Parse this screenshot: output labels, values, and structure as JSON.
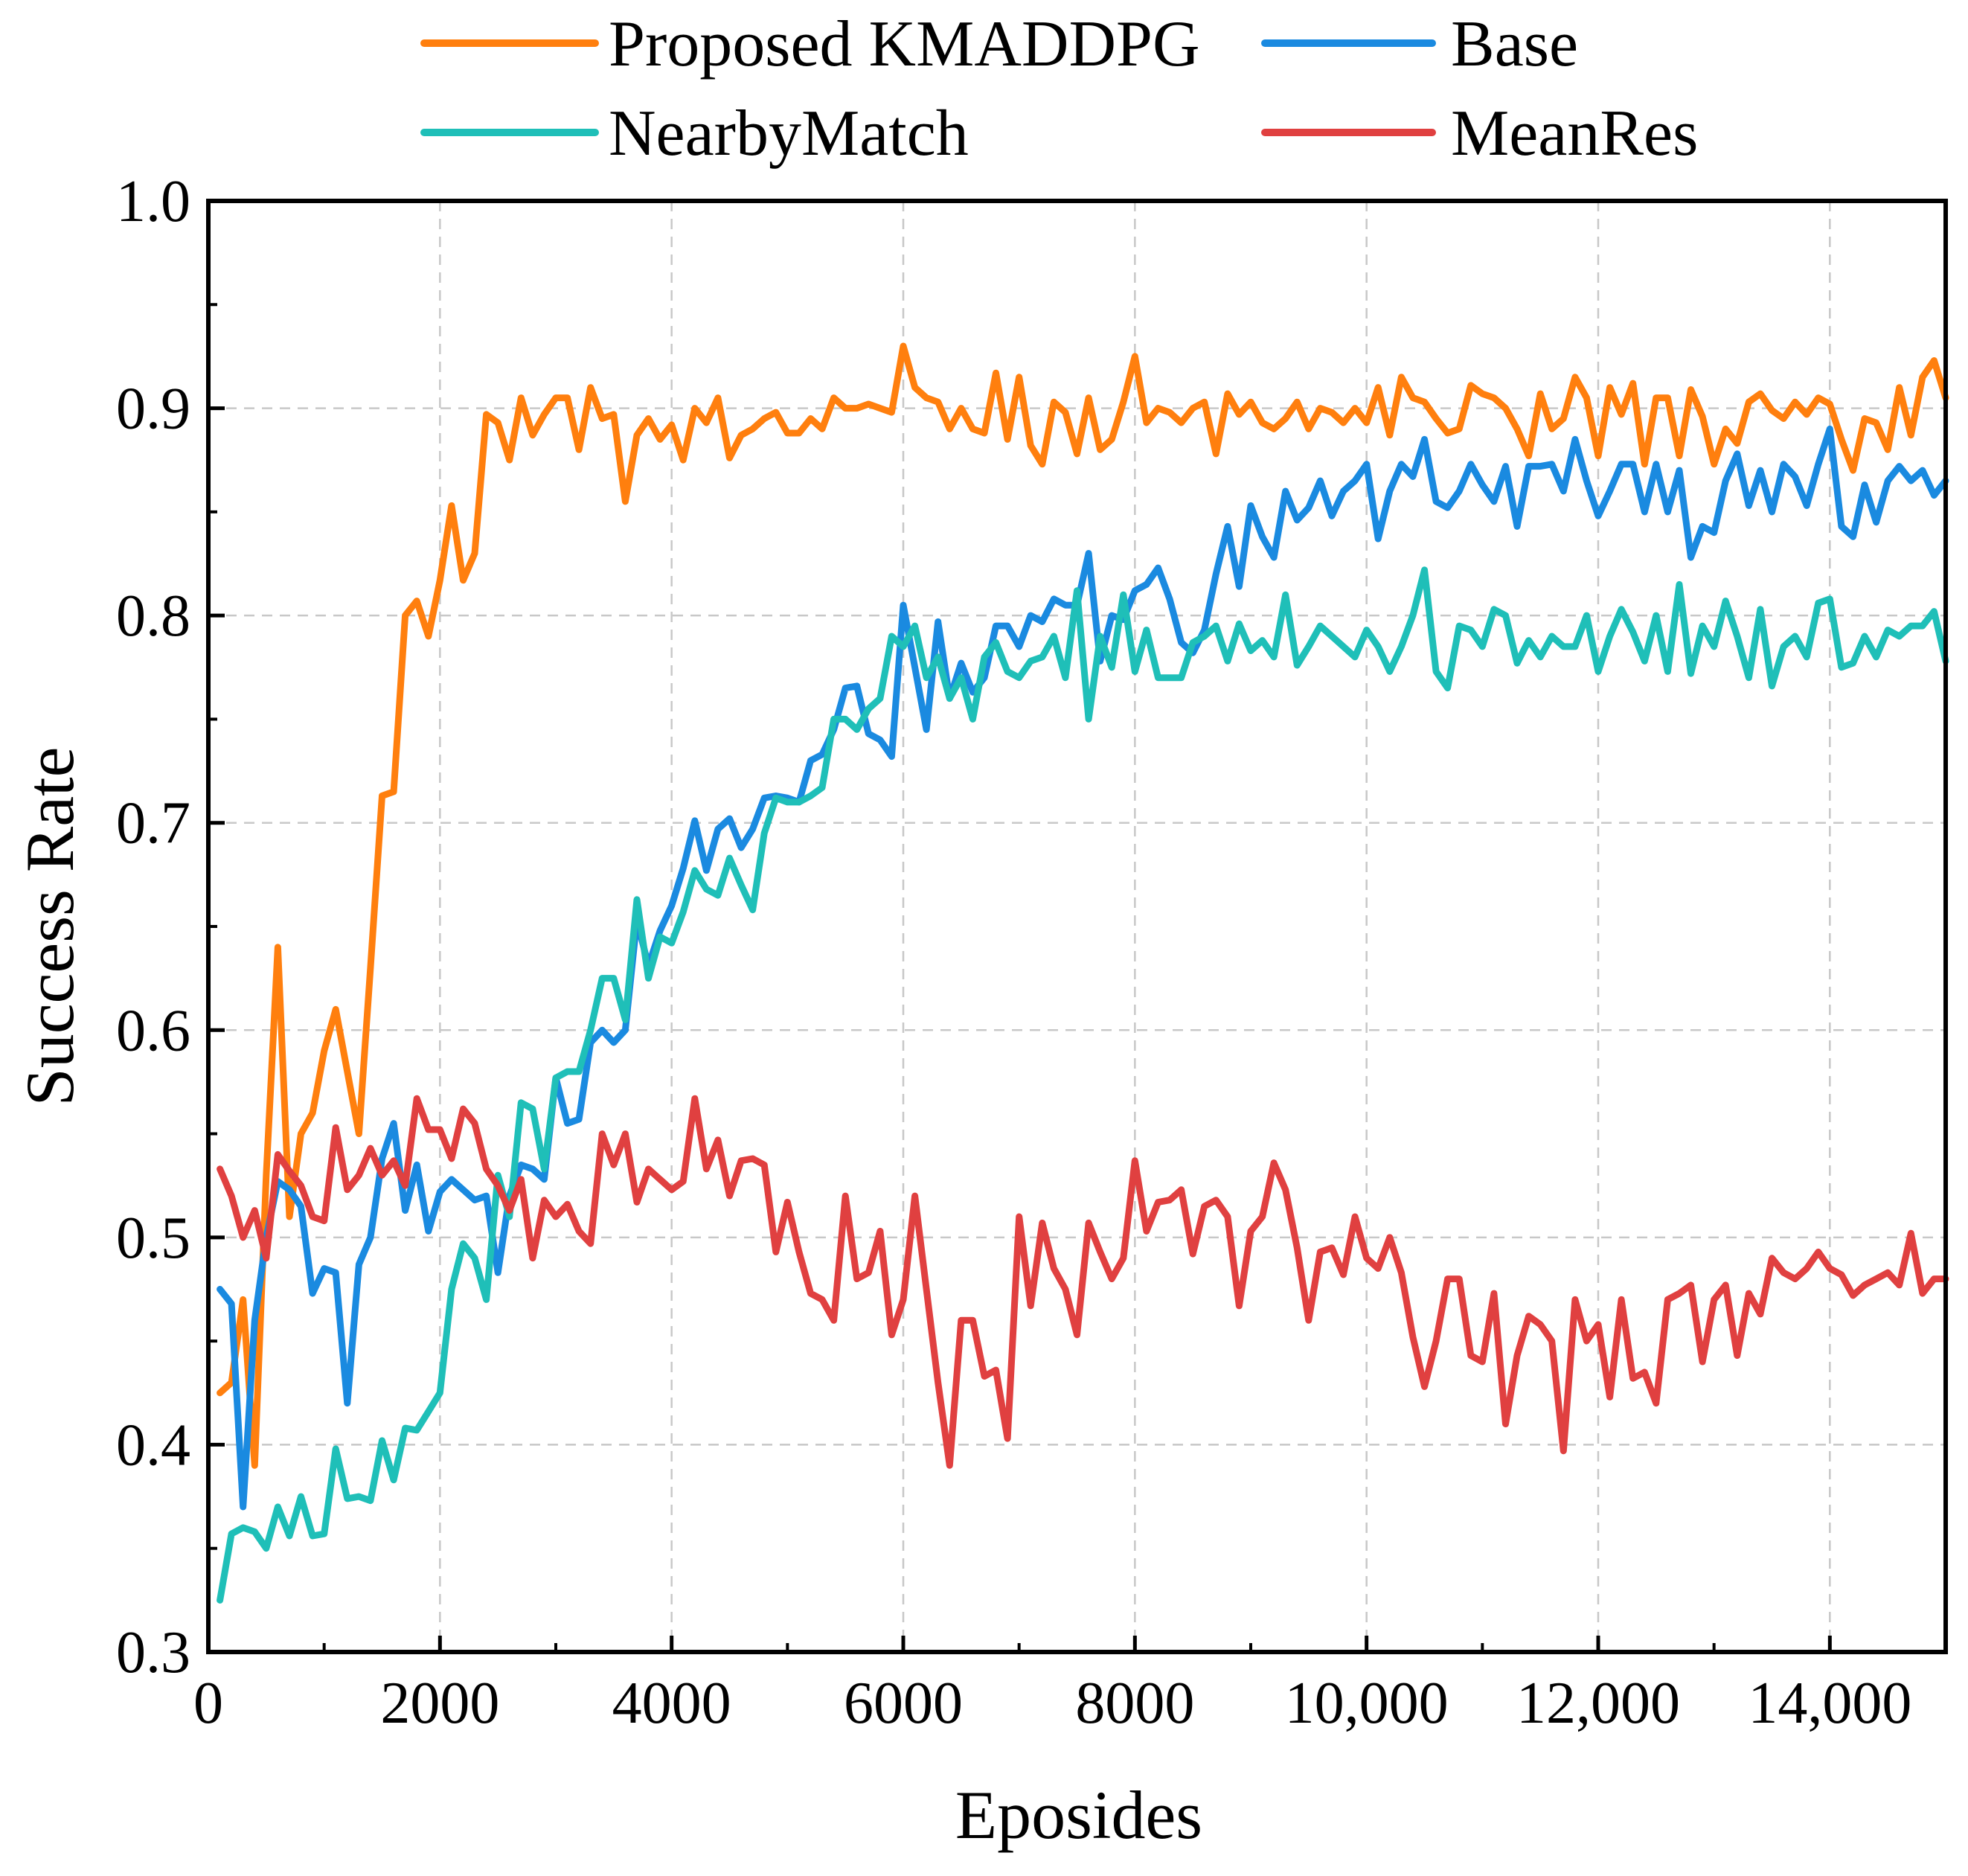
{
  "chart_data": {
    "type": "line",
    "title": "",
    "xlabel": "Eposides",
    "ylabel": "Success Rate",
    "xlim": [
      0,
      15000
    ],
    "ylim": [
      0.3,
      1.0
    ],
    "grid": true,
    "legend_position": "top",
    "x_ticks": [
      {
        "value": 0,
        "label": "0"
      },
      {
        "value": 2000,
        "label": "2000"
      },
      {
        "value": 4000,
        "label": "4000"
      },
      {
        "value": 6000,
        "label": "6000"
      },
      {
        "value": 8000,
        "label": "8000"
      },
      {
        "value": 10000,
        "label": "10,000"
      },
      {
        "value": 12000,
        "label": "12,000"
      },
      {
        "value": 14000,
        "label": "14,000"
      }
    ],
    "y_ticks": [
      {
        "value": 0.3,
        "label": "0.3"
      },
      {
        "value": 0.4,
        "label": "0.4"
      },
      {
        "value": 0.5,
        "label": "0.5"
      },
      {
        "value": 0.6,
        "label": "0.6"
      },
      {
        "value": 0.7,
        "label": "0.7"
      },
      {
        "value": 0.8,
        "label": "0.8"
      },
      {
        "value": 0.9,
        "label": "0.9"
      },
      {
        "value": 1.0,
        "label": "1.0"
      }
    ],
    "x_start": 100,
    "x_step": 100,
    "series": [
      {
        "name": "Proposed KMADDPG",
        "color": "#ff7f0e",
        "values": [
          0.425,
          0.43,
          0.47,
          0.39,
          0.53,
          0.64,
          0.51,
          0.55,
          0.56,
          0.59,
          0.61,
          0.58,
          0.55,
          0.63,
          0.713,
          0.715,
          0.8,
          0.807,
          0.79,
          0.817,
          0.853,
          0.817,
          0.83,
          0.897,
          0.893,
          0.875,
          0.905,
          0.887,
          0.897,
          0.905,
          0.905,
          0.88,
          0.91,
          0.895,
          0.897,
          0.855,
          0.887,
          0.895,
          0.885,
          0.892,
          0.875,
          0.9,
          0.893,
          0.905,
          0.876,
          0.887,
          0.89,
          0.895,
          0.898,
          0.888,
          0.888,
          0.895,
          0.89,
          0.905,
          0.9,
          0.9,
          0.902,
          0.9,
          0.898,
          0.93,
          0.91,
          0.905,
          0.903,
          0.89,
          0.9,
          0.89,
          0.888,
          0.917,
          0.885,
          0.915,
          0.882,
          0.873,
          0.903,
          0.898,
          0.878,
          0.905,
          0.88,
          0.885,
          0.903,
          0.925,
          0.893,
          0.9,
          0.898,
          0.893,
          0.9,
          0.903,
          0.878,
          0.907,
          0.897,
          0.903,
          0.893,
          0.89,
          0.895,
          0.903,
          0.89,
          0.9,
          0.898,
          0.893,
          0.9,
          0.893,
          0.91,
          0.887,
          0.915,
          0.905,
          0.903,
          0.895,
          0.888,
          0.89,
          0.911,
          0.907,
          0.905,
          0.9,
          0.89,
          0.877,
          0.907,
          0.89,
          0.895,
          0.915,
          0.905,
          0.877,
          0.91,
          0.897,
          0.912,
          0.873,
          0.905,
          0.905,
          0.877,
          0.909,
          0.896,
          0.873,
          0.89,
          0.883,
          0.903,
          0.907,
          0.899,
          0.895,
          0.903,
          0.897,
          0.905,
          0.902,
          0.885,
          0.87,
          0.895,
          0.893,
          0.88,
          0.91,
          0.887,
          0.915,
          0.923,
          0.905
        ]
      },
      {
        "name": "Base",
        "color": "#1a8ae0",
        "values": [
          0.475,
          0.468,
          0.37,
          0.46,
          0.5,
          0.527,
          0.523,
          0.515,
          0.473,
          0.485,
          0.483,
          0.42,
          0.487,
          0.5,
          0.538,
          0.555,
          0.513,
          0.535,
          0.503,
          0.522,
          0.528,
          0.523,
          0.518,
          0.52,
          0.483,
          0.52,
          0.535,
          0.533,
          0.528,
          0.577,
          0.555,
          0.557,
          0.594,
          0.6,
          0.594,
          0.6,
          0.653,
          0.631,
          0.648,
          0.66,
          0.678,
          0.701,
          0.677,
          0.697,
          0.702,
          0.688,
          0.697,
          0.712,
          0.713,
          0.712,
          0.71,
          0.73,
          0.733,
          0.745,
          0.765,
          0.766,
          0.743,
          0.74,
          0.732,
          0.805,
          0.775,
          0.745,
          0.797,
          0.76,
          0.777,
          0.763,
          0.77,
          0.795,
          0.795,
          0.785,
          0.8,
          0.797,
          0.808,
          0.805,
          0.805,
          0.83,
          0.778,
          0.8,
          0.798,
          0.812,
          0.815,
          0.823,
          0.808,
          0.787,
          0.782,
          0.793,
          0.82,
          0.843,
          0.814,
          0.853,
          0.838,
          0.828,
          0.86,
          0.846,
          0.852,
          0.865,
          0.848,
          0.86,
          0.865,
          0.873,
          0.837,
          0.86,
          0.873,
          0.867,
          0.885,
          0.855,
          0.852,
          0.86,
          0.873,
          0.863,
          0.855,
          0.872,
          0.843,
          0.872,
          0.872,
          0.873,
          0.86,
          0.885,
          0.865,
          0.848,
          0.86,
          0.873,
          0.873,
          0.85,
          0.873,
          0.85,
          0.87,
          0.828,
          0.843,
          0.84,
          0.865,
          0.878,
          0.853,
          0.87,
          0.85,
          0.873,
          0.867,
          0.853,
          0.873,
          0.89,
          0.843,
          0.838,
          0.863,
          0.845,
          0.865,
          0.872,
          0.865,
          0.87,
          0.858,
          0.865
        ]
      },
      {
        "name": "NearbyMatch",
        "color": "#1fbfb8",
        "values": [
          0.325,
          0.357,
          0.36,
          0.358,
          0.35,
          0.37,
          0.356,
          0.375,
          0.356,
          0.357,
          0.398,
          0.374,
          0.375,
          0.373,
          0.402,
          0.383,
          0.408,
          0.407,
          0.416,
          0.425,
          0.475,
          0.497,
          0.49,
          0.47,
          0.53,
          0.51,
          0.565,
          0.562,
          0.533,
          0.577,
          0.58,
          0.58,
          0.6,
          0.625,
          0.625,
          0.605,
          0.663,
          0.625,
          0.645,
          0.642,
          0.657,
          0.677,
          0.668,
          0.665,
          0.683,
          0.67,
          0.658,
          0.695,
          0.712,
          0.71,
          0.71,
          0.713,
          0.717,
          0.75,
          0.75,
          0.745,
          0.755,
          0.76,
          0.79,
          0.785,
          0.795,
          0.77,
          0.78,
          0.76,
          0.77,
          0.75,
          0.78,
          0.787,
          0.773,
          0.77,
          0.778,
          0.78,
          0.79,
          0.77,
          0.812,
          0.75,
          0.79,
          0.775,
          0.81,
          0.773,
          0.793,
          0.77,
          0.77,
          0.77,
          0.787,
          0.79,
          0.795,
          0.778,
          0.796,
          0.783,
          0.788,
          0.78,
          0.81,
          0.776,
          0.785,
          0.795,
          0.79,
          0.785,
          0.78,
          0.793,
          0.785,
          0.773,
          0.785,
          0.8,
          0.822,
          0.773,
          0.765,
          0.795,
          0.793,
          0.785,
          0.803,
          0.8,
          0.777,
          0.788,
          0.78,
          0.79,
          0.785,
          0.785,
          0.8,
          0.773,
          0.79,
          0.803,
          0.792,
          0.778,
          0.8,
          0.773,
          0.815,
          0.772,
          0.795,
          0.785,
          0.807,
          0.79,
          0.77,
          0.803,
          0.766,
          0.785,
          0.79,
          0.78,
          0.806,
          0.808,
          0.775,
          0.777,
          0.79,
          0.78,
          0.793,
          0.79,
          0.795,
          0.795,
          0.802,
          0.778
        ]
      },
      {
        "name": "MeanRes",
        "color": "#e04040",
        "values": [
          0.533,
          0.52,
          0.5,
          0.513,
          0.49,
          0.54,
          0.532,
          0.525,
          0.51,
          0.508,
          0.553,
          0.523,
          0.53,
          0.543,
          0.53,
          0.537,
          0.525,
          0.567,
          0.552,
          0.552,
          0.538,
          0.562,
          0.555,
          0.533,
          0.525,
          0.513,
          0.528,
          0.49,
          0.518,
          0.51,
          0.516,
          0.503,
          0.497,
          0.55,
          0.535,
          0.55,
          0.517,
          0.533,
          0.528,
          0.523,
          0.527,
          0.567,
          0.533,
          0.547,
          0.52,
          0.537,
          0.538,
          0.535,
          0.493,
          0.517,
          0.493,
          0.473,
          0.47,
          0.46,
          0.52,
          0.48,
          0.483,
          0.503,
          0.453,
          0.47,
          0.52,
          0.475,
          0.43,
          0.39,
          0.46,
          0.46,
          0.433,
          0.436,
          0.403,
          0.51,
          0.467,
          0.507,
          0.485,
          0.475,
          0.453,
          0.507,
          0.493,
          0.48,
          0.49,
          0.537,
          0.503,
          0.517,
          0.518,
          0.523,
          0.492,
          0.515,
          0.518,
          0.51,
          0.467,
          0.503,
          0.51,
          0.536,
          0.523,
          0.495,
          0.46,
          0.493,
          0.495,
          0.482,
          0.51,
          0.49,
          0.485,
          0.5,
          0.483,
          0.452,
          0.428,
          0.45,
          0.48,
          0.48,
          0.443,
          0.44,
          0.473,
          0.41,
          0.443,
          0.462,
          0.458,
          0.45,
          0.397,
          0.47,
          0.45,
          0.458,
          0.423,
          0.47,
          0.432,
          0.435,
          0.42,
          0.47,
          0.473,
          0.477,
          0.44,
          0.47,
          0.477,
          0.443,
          0.473,
          0.463,
          0.49,
          0.483,
          0.48,
          0.485,
          0.493,
          0.485,
          0.482,
          0.472,
          0.477,
          0.48,
          0.483,
          0.477,
          0.502,
          0.473,
          0.48,
          0.48
        ]
      }
    ]
  }
}
